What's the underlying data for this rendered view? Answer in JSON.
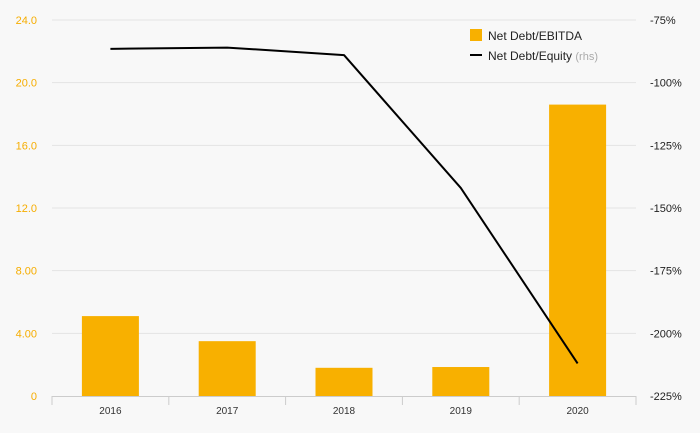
{
  "chart_data": {
    "type": "bar",
    "categories": [
      "2016",
      "2017",
      "2018",
      "2019",
      "2020"
    ],
    "series": [
      {
        "name": "Net Debt/EBITDA",
        "type": "bar",
        "axis": "left",
        "color": "#f8b000",
        "values": [
          5.1,
          3.5,
          1.8,
          1.85,
          18.6
        ]
      },
      {
        "name": "Net Debt/Equity",
        "name_suffix": "(rhs)",
        "type": "line",
        "axis": "right",
        "color": "#000000",
        "values": [
          -86.5,
          -86.0,
          -89.0,
          -142.0,
          -212.0
        ]
      }
    ],
    "left_axis": {
      "ylim": [
        0,
        24
      ],
      "ticks": [
        0,
        4,
        8,
        12,
        16,
        20,
        24
      ],
      "tick_labels": [
        "0",
        "4.00",
        "8.00",
        "12.0",
        "16.0",
        "20.0",
        "24.0"
      ]
    },
    "right_axis": {
      "ylim": [
        -225,
        -75
      ],
      "ticks": [
        -225,
        -200,
        -175,
        -150,
        -125,
        -100,
        -75
      ],
      "tick_labels": [
        "-225%",
        "-200%",
        "-175%",
        "-150%",
        "-125%",
        "-100%",
        "-75%"
      ]
    },
    "grid": true,
    "legend_position": "top-right"
  }
}
